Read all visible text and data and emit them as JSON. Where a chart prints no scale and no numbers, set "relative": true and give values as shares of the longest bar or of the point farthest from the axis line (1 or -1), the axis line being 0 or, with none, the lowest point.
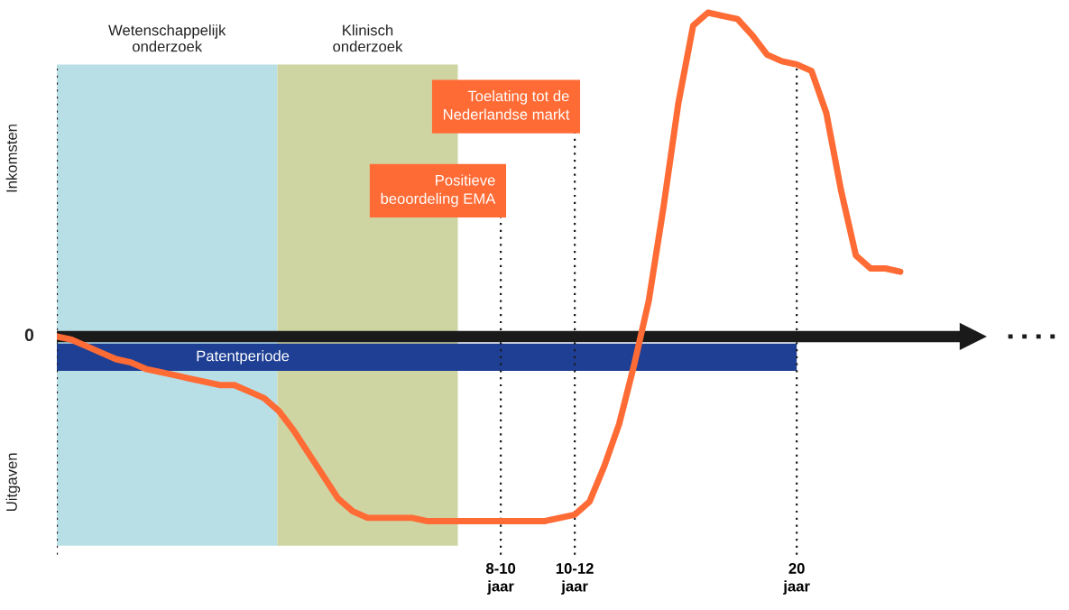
{
  "chart_data": {
    "type": "line",
    "relative": true,
    "categories": [
      null,
      null,
      null,
      null,
      null,
      null,
      null,
      null,
      null,
      null,
      null,
      null,
      null,
      null,
      null,
      null,
      null,
      null,
      null,
      null,
      null,
      null,
      null,
      null,
      null,
      null,
      null,
      null,
      null,
      null,
      "8-10\njaar",
      null,
      null,
      null,
      null,
      "10-12\njaar",
      null,
      null,
      null,
      null,
      null,
      null,
      null,
      null,
      null,
      null,
      null,
      null,
      null,
      null,
      "20\njaar",
      null,
      null,
      null,
      null,
      null,
      null,
      null
    ],
    "series": [
      {
        "color": "#ff6b35",
        "values": [
          0,
          -0.01,
          -0.03,
          -0.05,
          -0.07,
          -0.08,
          -0.1,
          -0.11,
          -0.12,
          -0.13,
          -0.14,
          -0.15,
          -0.15,
          -0.17,
          -0.19,
          -0.23,
          -0.29,
          -0.36,
          -0.43,
          -0.5,
          -0.54,
          -0.56,
          -0.56,
          -0.56,
          -0.56,
          -0.57,
          -0.57,
          -0.57,
          -0.57,
          -0.57,
          -0.57,
          -0.57,
          -0.57,
          -0.57,
          -0.56,
          -0.55,
          -0.51,
          -0.4,
          -0.27,
          -0.09,
          0.11,
          0.4,
          0.72,
          0.96,
          1,
          0.99,
          0.98,
          0.93,
          0.87,
          0.85,
          0.84,
          0.82,
          0.69,
          0.45,
          0.25,
          0.21,
          0.21,
          0.2
        ]
      }
    ],
    "bands": [
      {
        "axis": "y",
        "from": -0.022,
        "to": -0.106,
        "label": "Patentperiode",
        "color": "#1e3f94"
      }
    ],
    "ref_lines": [
      {
        "axis": "y",
        "value": 0,
        "label": "0",
        "color": "#1a1a1a",
        "line_style": "solid"
      },
      {
        "axis": "x",
        "value": "8-10\njaar",
        "line_style": "dotted"
      },
      {
        "axis": "x",
        "value": "10-12\njaar",
        "line_style": "dotted"
      },
      {
        "axis": "x",
        "value": "20\njaar",
        "line_style": "dotted"
      }
    ],
    "annotations": [
      "Inkomsten",
      "Uitgaven",
      "Positieve\nbeoordeling EMA",
      "Toelating tot de\nNederlandse markt",
      "Wetenschappelijk\nonderzoek",
      "Klinisch\nonderzoek"
    ]
  }
}
